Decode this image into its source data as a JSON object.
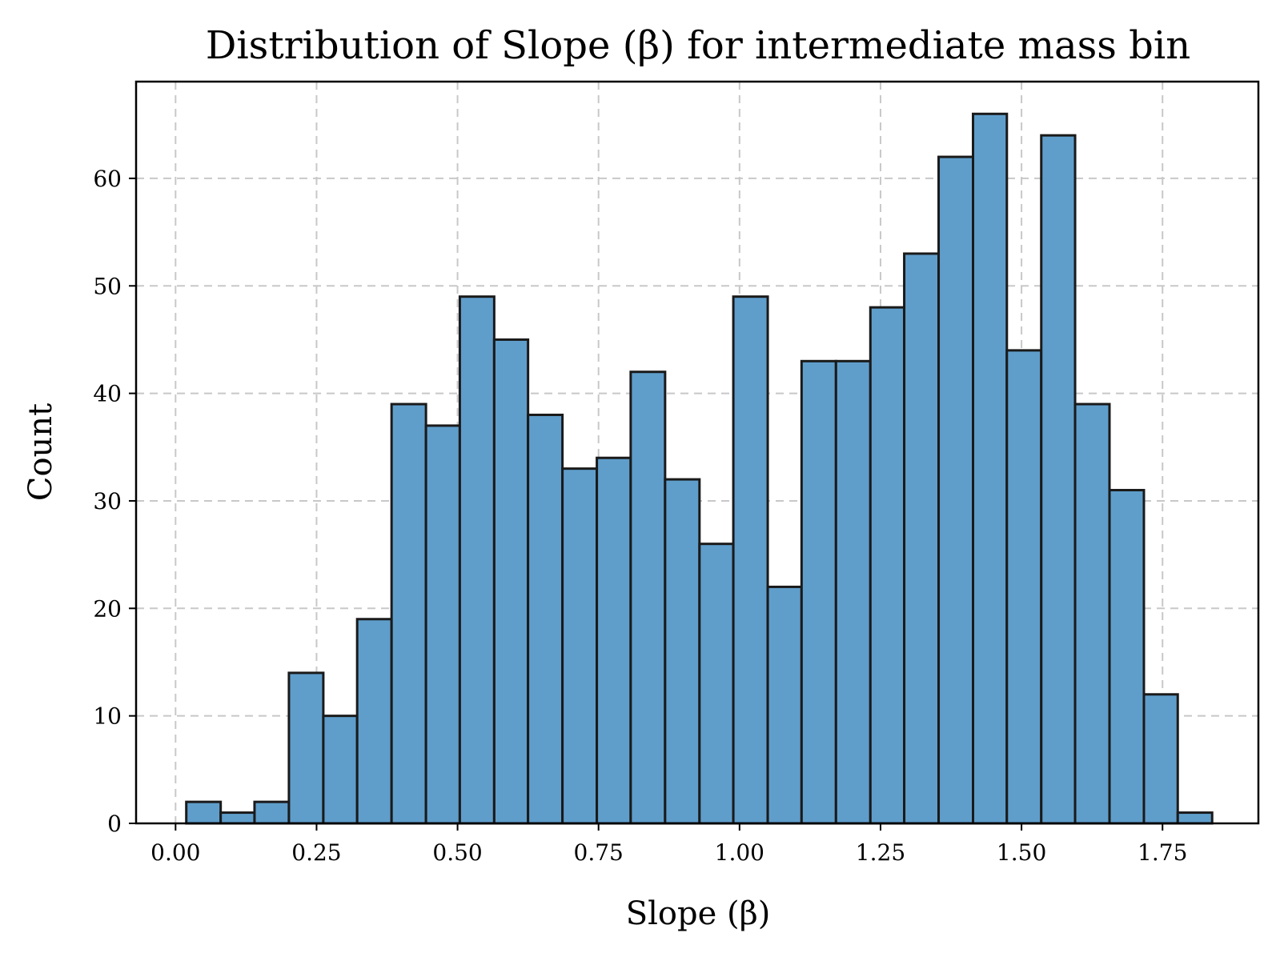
{
  "chart_data": {
    "type": "bar",
    "title": "Distribution of Slope (β) for intermediate mass bin",
    "xlabel": "Slope (β)",
    "ylabel": "Count",
    "xlim": [
      -0.07,
      1.92
    ],
    "ylim": [
      0,
      69
    ],
    "xticks": [
      0.0,
      0.25,
      0.5,
      0.75,
      1.0,
      1.25,
      1.5,
      1.75
    ],
    "xtick_labels": [
      "0.00",
      "0.25",
      "0.50",
      "0.75",
      "1.00",
      "1.25",
      "1.50",
      "1.75"
    ],
    "yticks": [
      0,
      10,
      20,
      30,
      40,
      50,
      60
    ],
    "ytick_labels": [
      "0",
      "10",
      "20",
      "30",
      "40",
      "50",
      "60"
    ],
    "grid": true,
    "bar_color": "#5f9ecb",
    "edge_color": "#1a1a1a",
    "bins": [
      {
        "x0": 0.019,
        "x1": 0.08,
        "value": 2
      },
      {
        "x0": 0.08,
        "x1": 0.14,
        "value": 1
      },
      {
        "x0": 0.14,
        "x1": 0.201,
        "value": 2
      },
      {
        "x0": 0.201,
        "x1": 0.262,
        "value": 14
      },
      {
        "x0": 0.262,
        "x1": 0.322,
        "value": 10
      },
      {
        "x0": 0.322,
        "x1": 0.383,
        "value": 19
      },
      {
        "x0": 0.383,
        "x1": 0.444,
        "value": 39
      },
      {
        "x0": 0.444,
        "x1": 0.504,
        "value": 37
      },
      {
        "x0": 0.504,
        "x1": 0.565,
        "value": 49
      },
      {
        "x0": 0.565,
        "x1": 0.625,
        "value": 45
      },
      {
        "x0": 0.625,
        "x1": 0.686,
        "value": 38
      },
      {
        "x0": 0.686,
        "x1": 0.747,
        "value": 33
      },
      {
        "x0": 0.747,
        "x1": 0.807,
        "value": 34
      },
      {
        "x0": 0.807,
        "x1": 0.868,
        "value": 42
      },
      {
        "x0": 0.868,
        "x1": 0.929,
        "value": 32
      },
      {
        "x0": 0.929,
        "x1": 0.989,
        "value": 26
      },
      {
        "x0": 0.989,
        "x1": 1.05,
        "value": 49
      },
      {
        "x0": 1.05,
        "x1": 1.11,
        "value": 22
      },
      {
        "x0": 1.11,
        "x1": 1.171,
        "value": 43
      },
      {
        "x0": 1.171,
        "x1": 1.232,
        "value": 43
      },
      {
        "x0": 1.232,
        "x1": 1.292,
        "value": 48
      },
      {
        "x0": 1.292,
        "x1": 1.353,
        "value": 53
      },
      {
        "x0": 1.353,
        "x1": 1.414,
        "value": 62
      },
      {
        "x0": 1.414,
        "x1": 1.474,
        "value": 66
      },
      {
        "x0": 1.474,
        "x1": 1.535,
        "value": 44
      },
      {
        "x0": 1.535,
        "x1": 1.595,
        "value": 64
      },
      {
        "x0": 1.595,
        "x1": 1.656,
        "value": 39
      },
      {
        "x0": 1.656,
        "x1": 1.717,
        "value": 31
      },
      {
        "x0": 1.717,
        "x1": 1.777,
        "value": 12
      },
      {
        "x0": 1.777,
        "x1": 1.838,
        "value": 1
      }
    ]
  }
}
